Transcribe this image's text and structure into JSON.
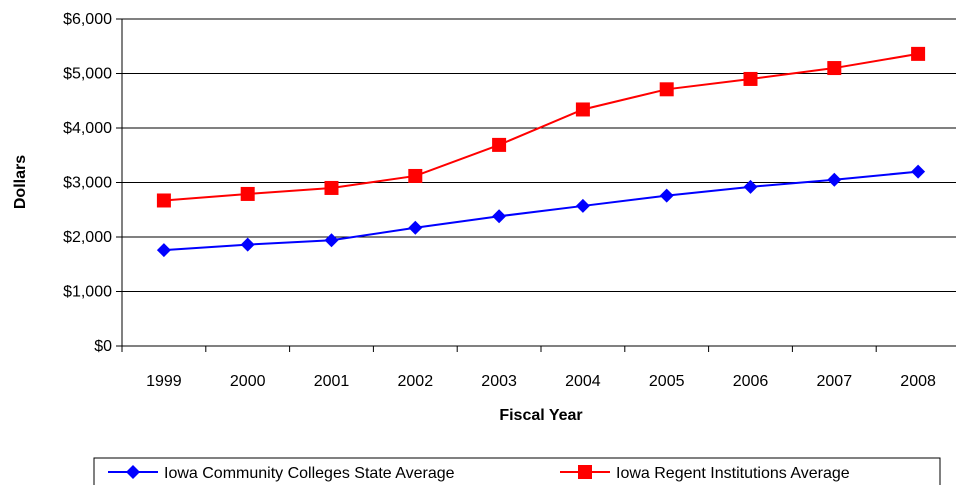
{
  "chart_data": {
    "type": "line",
    "title": "",
    "xlabel": "Fiscal Year",
    "ylabel": "Dollars",
    "ylim": [
      0,
      6000
    ],
    "y_ticks": [
      {
        "value": 0,
        "label": "$0"
      },
      {
        "value": 1000,
        "label": "$1,000"
      },
      {
        "value": 2000,
        "label": "$2,000"
      },
      {
        "value": 3000,
        "label": "$3,000"
      },
      {
        "value": 4000,
        "label": "$4,000"
      },
      {
        "value": 5000,
        "label": "$5,000"
      },
      {
        "value": 6000,
        "label": "$6,000"
      }
    ],
    "categories": [
      "1999",
      "2000",
      "2001",
      "2002",
      "2003",
      "2004",
      "2005",
      "2006",
      "2007",
      "2008"
    ],
    "grid": true,
    "legend_position": "bottom",
    "series": [
      {
        "name": "Iowa Community Colleges State Average",
        "color": "#0000ff",
        "marker": "diamond",
        "values": [
          1760,
          1860,
          1940,
          2170,
          2380,
          2570,
          2760,
          2920,
          3050,
          3200
        ]
      },
      {
        "name": "Iowa Regent Institutions Average",
        "color": "#ff0000",
        "marker": "square",
        "values": [
          2670,
          2790,
          2900,
          3120,
          3690,
          4340,
          4710,
          4900,
          5100,
          5360
        ]
      }
    ]
  }
}
